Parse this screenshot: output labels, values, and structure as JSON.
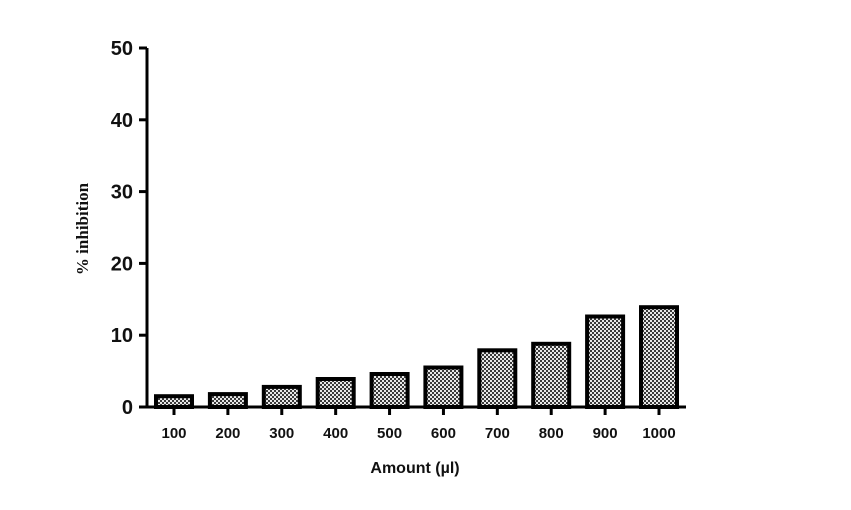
{
  "chart_data": {
    "type": "bar",
    "categories": [
      "100",
      "200",
      "300",
      "400",
      "500",
      "600",
      "700",
      "800",
      "900",
      "1000"
    ],
    "values": [
      1.5,
      1.8,
      2.8,
      3.9,
      4.6,
      5.5,
      7.9,
      8.8,
      12.6,
      13.9
    ],
    "xlabel": "Amount (µl)",
    "ylabel": "% inhibition",
    "ylim": [
      0,
      50
    ],
    "yticks": [
      "0",
      "10",
      "20",
      "30",
      "40",
      "50"
    ],
    "grid": false,
    "bar_fill": "checkered gray",
    "bar_color": "#000000"
  }
}
